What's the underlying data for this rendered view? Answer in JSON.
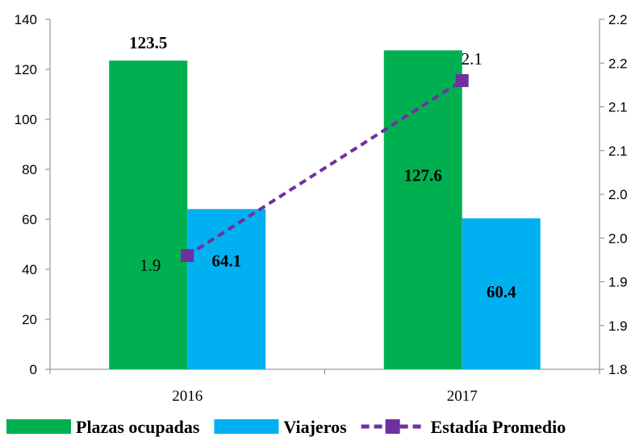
{
  "chart_data": {
    "type": "bar",
    "categories": [
      "2016",
      "2017"
    ],
    "series": [
      {
        "name": "Plazas ocupadas",
        "kind": "bar",
        "axis": "left",
        "values": [
          123.5,
          127.6
        ],
        "labels": [
          "123.5",
          "127.6"
        ],
        "color": "#00B050"
      },
      {
        "name": "Viajeros",
        "kind": "bar",
        "axis": "left",
        "values": [
          64.1,
          60.4
        ],
        "labels": [
          "64.1",
          "60.4"
        ],
        "color": "#00B0F0"
      },
      {
        "name": "Estadía Promedio",
        "kind": "line",
        "axis": "right",
        "values": [
          1.93,
          2.13
        ],
        "labels": [
          "1.9",
          "2.1"
        ],
        "color": "#7030A0",
        "dashed": true,
        "marker": "square"
      }
    ],
    "left_axis": {
      "ylim": [
        0,
        140
      ],
      "ticks": [
        0,
        20,
        40,
        60,
        80,
        100,
        120,
        140
      ],
      "tick_labels": [
        "0",
        "20",
        "40",
        "60",
        "80",
        "100",
        "120",
        "140"
      ]
    },
    "right_axis": {
      "ylim": [
        1.8,
        2.2
      ],
      "ticks": [
        1.8,
        1.85,
        1.9,
        1.95,
        2.0,
        2.05,
        2.1,
        2.15,
        2.2
      ],
      "tick_labels": [
        "1.8",
        "1.9",
        "1.9",
        "2.0",
        "2.0",
        "2.1",
        "2.1",
        "2.2",
        "2.2"
      ]
    },
    "grid": false,
    "legend_position": "bottom",
    "title": "",
    "xlabel": "",
    "ylabel": ""
  }
}
